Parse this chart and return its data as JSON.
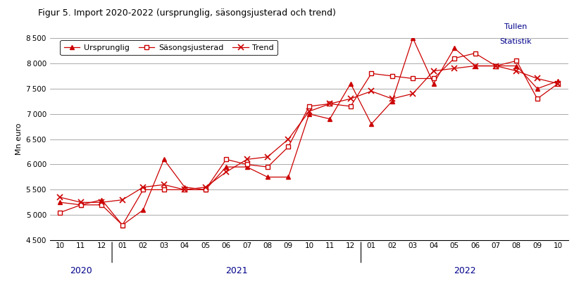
{
  "title": "Figur 5. Import 2020-2022 (ursprunglig, säsongsjusterad och trend)",
  "watermark": [
    "Tullen",
    "Statistik"
  ],
  "watermark_color": "#00008B",
  "ylabel": "Mn euro",
  "line_color": "#CC0000",
  "background_color": "#ffffff",
  "ylim": [
    4500,
    8500
  ],
  "yticks": [
    4500,
    5000,
    5500,
    6000,
    6500,
    7000,
    7500,
    8000,
    8500
  ],
  "months": [
    "10",
    "11",
    "12",
    "01",
    "02",
    "03",
    "04",
    "05",
    "06",
    "07",
    "08",
    "09",
    "10",
    "11",
    "12",
    "01",
    "02",
    "03",
    "04",
    "05",
    "06",
    "07",
    "08",
    "09",
    "10"
  ],
  "year_groups": [
    {
      "label": "2020",
      "start": 0,
      "end": 2
    },
    {
      "label": "2021",
      "start": 3,
      "end": 14
    },
    {
      "label": "2022",
      "start": 15,
      "end": 24
    }
  ],
  "dividers": [
    2.5,
    14.5
  ],
  "ursprunglig": [
    5250,
    5200,
    5300,
    4800,
    5100,
    6100,
    5550,
    5500,
    5950,
    5950,
    5750,
    5750,
    7000,
    6900,
    7600,
    6800,
    7250,
    8500,
    7600,
    8300,
    7950,
    7950,
    7950,
    7500,
    7650
  ],
  "sasongsjusterad": [
    5050,
    5200,
    5200,
    4800,
    5500,
    5500,
    5500,
    5500,
    6100,
    6000,
    5950,
    6350,
    7150,
    7200,
    7150,
    7800,
    7750,
    7700,
    7700,
    8100,
    8200,
    7950,
    8050,
    7300,
    7600
  ],
  "trend": [
    5350,
    5250,
    5250,
    5300,
    5550,
    5600,
    5500,
    5550,
    5850,
    6100,
    6150,
    6500,
    7050,
    7200,
    7300,
    7450,
    7300,
    7400,
    7850,
    7900,
    7950,
    7950,
    7850,
    7700,
    7600
  ],
  "legend_labels": [
    "Ursprunglig",
    "Säsongsjusterad",
    "Trend"
  ],
  "year_label_color": "#00008B",
  "title_fontsize": 9,
  "tick_fontsize": 7.5,
  "ylabel_fontsize": 8
}
